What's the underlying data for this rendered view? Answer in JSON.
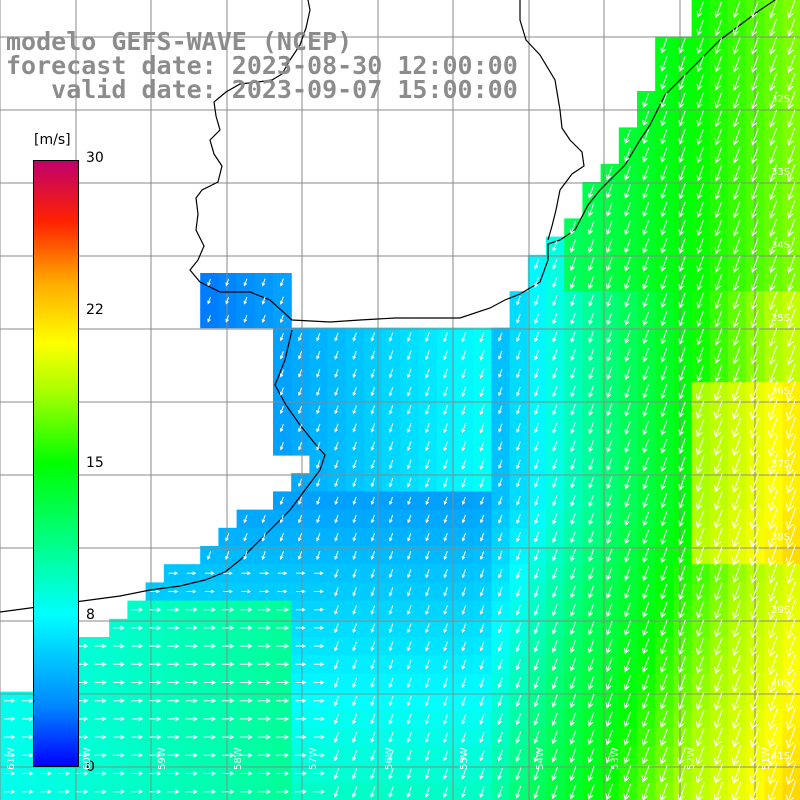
{
  "title": {
    "line1": "modelo GEFS-WAVE (NCEP)",
    "line2": "forecast date: 2023-08-30 12:00:00",
    "line3": "   valid date: 2023-09-07 15:00:00"
  },
  "colorbar": {
    "unit": "[m/s]",
    "ticks": [
      "30",
      "22",
      "15",
      "8",
      "0"
    ],
    "tick_values": [
      30,
      22,
      15,
      8,
      0
    ],
    "min": 0,
    "max": 30,
    "colors": [
      "#0000ff",
      "#0088ff",
      "#00ffff",
      "#00ff66",
      "#00ff00",
      "#aaff00",
      "#ffff00",
      "#ffaa00",
      "#ff2200",
      "#c0006c"
    ]
  },
  "lat_labels": [
    "32S",
    "33S",
    "34S",
    "35S",
    "36S",
    "37S",
    "38S",
    "39S",
    "40S",
    "41S"
  ],
  "lon_labels": [
    "61W",
    "60W",
    "59W",
    "58W",
    "57W",
    "56W",
    "55W",
    "54W",
    "53W",
    "52W",
    "51W"
  ],
  "map": {
    "field": "wind speed",
    "vectors_color": "#ffffff",
    "grid_color": "#888888",
    "coastline_color": "#000000"
  }
}
